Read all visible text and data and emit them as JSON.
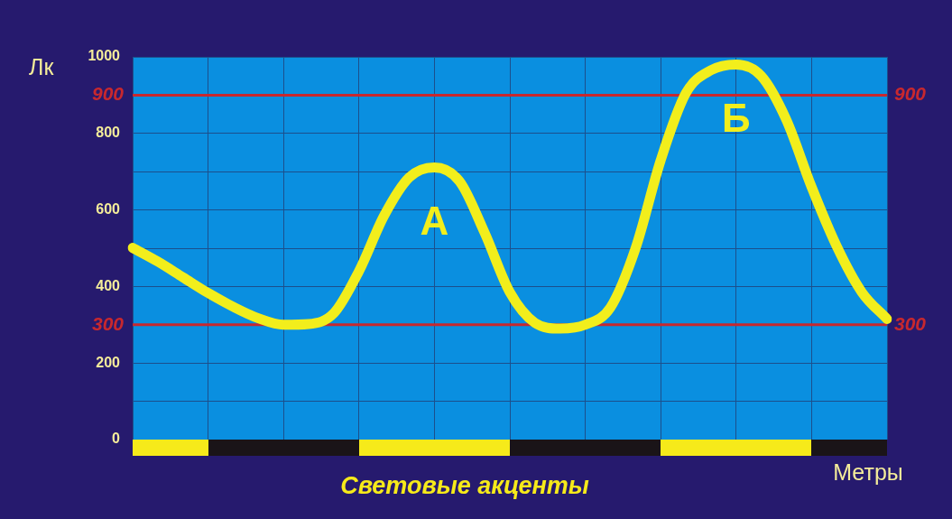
{
  "chart_data": {
    "type": "line",
    "title": "Световые акценты",
    "xlabel": "Метры",
    "ylabel": "Лк",
    "categories": [
      null,
      null,
      null,
      null,
      null,
      null,
      null,
      null,
      null,
      null,
      null,
      null,
      null,
      null,
      null,
      null,
      null,
      null,
      null,
      null,
      null,
      null,
      null,
      null,
      null,
      null,
      null,
      null,
      null,
      null,
      null
    ],
    "series": [
      {
        "color": "#f2ee1c",
        "values": [
          501,
          465,
          424,
          383,
          347,
          317,
          300,
          302,
          330,
          440,
          585,
          685,
          711,
          675,
          540,
          385,
          305,
          290,
          300,
          345,
          500,
          730,
          905,
          965,
          980,
          950,
          835,
          660,
          505,
          385,
          315
        ]
      }
    ],
    "ylim": [
      0,
      1000
    ],
    "yticks": [
      0,
      {
        "value": 100,
        "label": null
      },
      200,
      400,
      {
        "value": 500,
        "label": null
      },
      600,
      {
        "value": 700,
        "label": null
      },
      800,
      1000
    ],
    "ref_lines": [
      {
        "axis": "y",
        "value": 300,
        "label": "300",
        "color": "#c8282e"
      },
      {
        "axis": "y",
        "value": 900,
        "label": "900",
        "color": "#c8282e"
      }
    ],
    "annotations": [
      "А",
      "Б"
    ],
    "grid": true,
    "legend": false,
    "marker": "none",
    "line_style": "solid",
    "tick_labels": "y"
  }
}
